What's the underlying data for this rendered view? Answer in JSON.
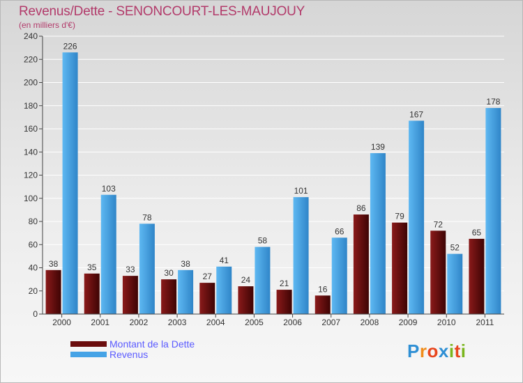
{
  "chart_data": {
    "type": "bar",
    "title": "Revenus/Dette - SENONCOURT-LES-MAUJOUY",
    "subtitle": "(en milliers d'€)",
    "categories": [
      "2000",
      "2001",
      "2002",
      "2003",
      "2004",
      "2005",
      "2006",
      "2007",
      "2008",
      "2009",
      "2010",
      "2011"
    ],
    "series": [
      {
        "name": "Montant de la Dette",
        "color": "#6b0d0d",
        "values": [
          38,
          35,
          33,
          30,
          27,
          24,
          21,
          16,
          86,
          79,
          72,
          65
        ]
      },
      {
        "name": "Revenus",
        "color": "#45a3e6",
        "values": [
          226,
          103,
          78,
          38,
          41,
          58,
          101,
          66,
          139,
          167,
          52,
          178
        ]
      }
    ],
    "ylim": [
      0,
      240
    ],
    "yticks": [
      0,
      20,
      40,
      60,
      80,
      100,
      120,
      140,
      160,
      180,
      200,
      220,
      240
    ],
    "grid": true,
    "legend_position": "bottom-left",
    "data_labels": true
  },
  "brand": {
    "letters": [
      "P",
      "r",
      "o",
      "x",
      "i",
      "t",
      "i"
    ]
  }
}
